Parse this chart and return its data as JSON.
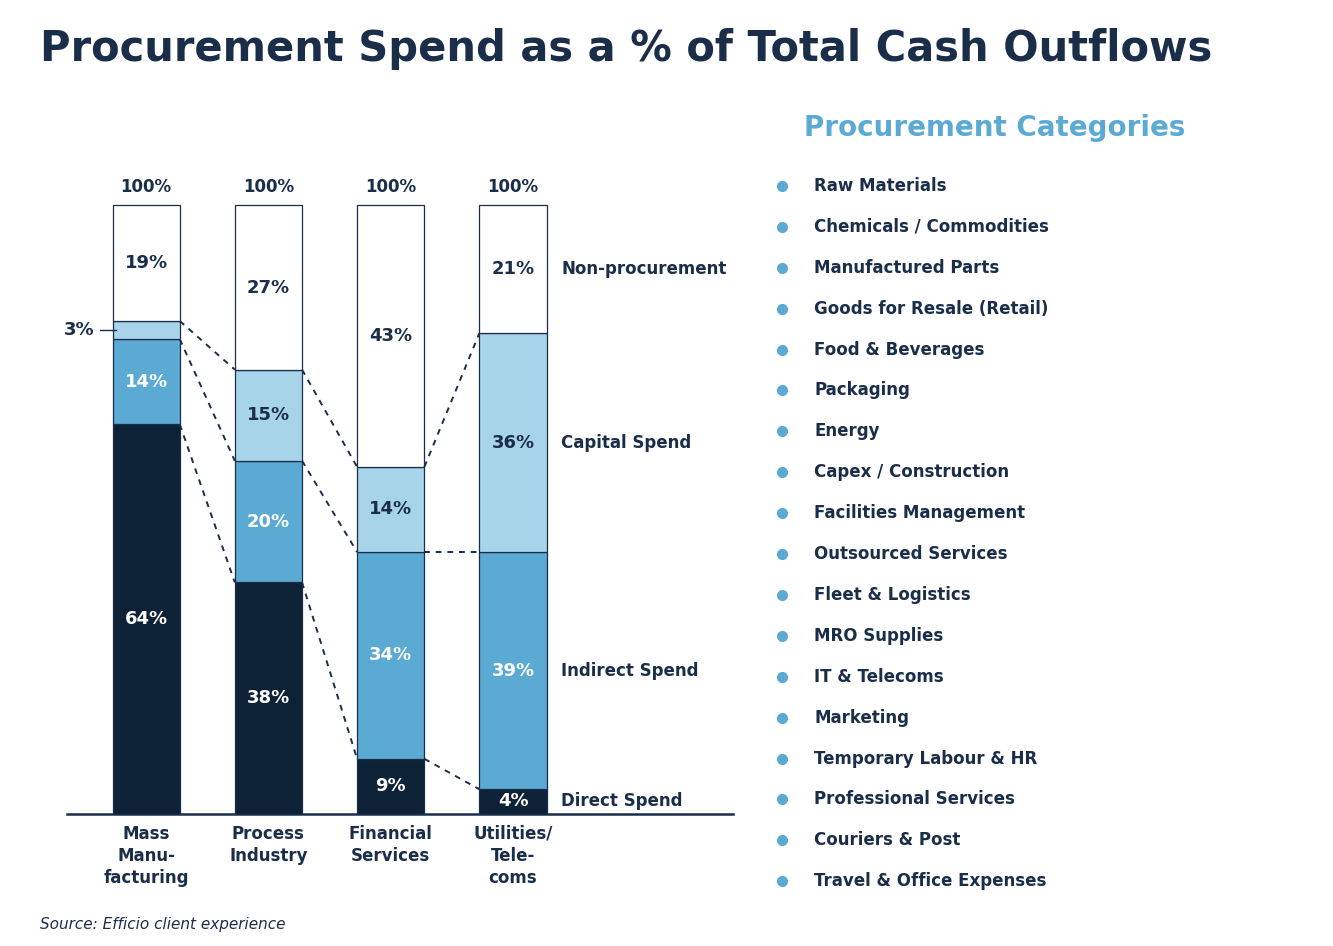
{
  "title": "Procurement Spend as a % of Total Cash Outflows",
  "title_color": "#1a2e4a",
  "title_fontsize": 30,
  "background_color": "#ffffff",
  "categories": [
    "Mass\nManu-\nfacturing",
    "Process\nIndustry",
    "Financial\nServices",
    "Utilities/\nTele-\ncoms"
  ],
  "segment_order": [
    "Direct Spend",
    "Indirect Spend",
    "Capital Spend",
    "Non-procurement"
  ],
  "segments": {
    "Direct Spend": {
      "values": [
        64,
        38,
        9,
        4
      ],
      "color": "#0d2137"
    },
    "Indirect Spend": {
      "values": [
        14,
        20,
        34,
        39
      ],
      "color": "#5baad4"
    },
    "Capital Spend": {
      "values": [
        3,
        15,
        14,
        36
      ],
      "color": "#a8d4ea"
    },
    "Non-procurement": {
      "values": [
        19,
        27,
        43,
        21
      ],
      "color": "#ffffff"
    }
  },
  "label_colors": {
    "Direct Spend": "#ffffff",
    "Indirect Spend": "#ffffff",
    "Capital Spend": "#1a2e4a",
    "Non-procurement": "#1a2e4a"
  },
  "dotted_line_color": "#1a2e4a",
  "axis_label_color": "#1a2e4a",
  "source_text": "Source: Efficio client experience",
  "procurement_categories_title": "Procurement Categories",
  "procurement_categories_title_color": "#5baad4",
  "procurement_categories": [
    "Raw Materials",
    "Chemicals / Commodities",
    "Manufactured Parts",
    "Goods for Resale (Retail)",
    "Food & Beverages",
    "Packaging",
    "Energy",
    "Capex / Construction",
    "Facilities Management",
    "Outsourced Services",
    "Fleet & Logistics",
    "MRO Supplies",
    "IT & Telecoms",
    "Marketing",
    "Temporary Labour & HR",
    "Professional Services",
    "Couriers & Post",
    "Travel & Office Expenses"
  ],
  "bar_width": 0.55,
  "ylim": [
    0,
    112
  ]
}
